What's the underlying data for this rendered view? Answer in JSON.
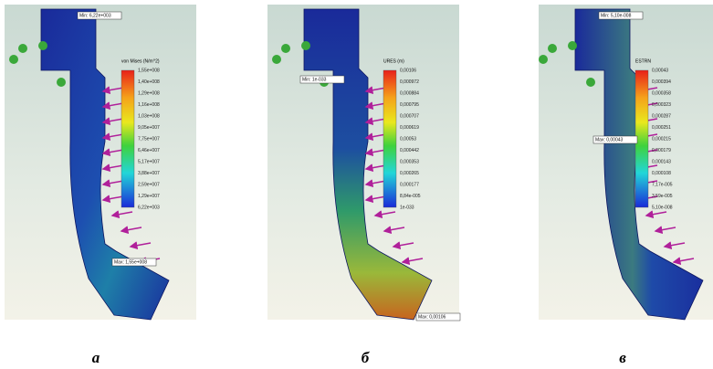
{
  "panels": [
    {
      "legend_title": "von Mises (N/m^2)",
      "legend_labels": [
        "1,55e+008",
        "1,40e+008",
        "1,29e+008",
        "1,16e+008",
        "1,03e+008",
        "9,05e+007",
        "7,75e+007",
        "6,46e+007",
        "5,17e+007",
        "3,88e+007",
        "2,59e+007",
        "1,29e+007",
        "6,22e+003"
      ],
      "min_label": "Min: 6,22e+003",
      "max_label": "Max: 1,55e+008",
      "caption": "а"
    },
    {
      "legend_title": "URES (m)",
      "legend_labels": [
        "0,00106",
        "0,000972",
        "0,000884",
        "0,000795",
        "0,000707",
        "0,000619",
        "0,00053",
        "0,000442",
        "0,000353",
        "0,000265",
        "0,000177",
        "8,84e-005",
        "1e-033"
      ],
      "min_label": "Min: 1e-033",
      "max_label": "Max: 0,00106",
      "caption": "б"
    },
    {
      "legend_title": "ESTRN",
      "legend_labels": [
        "0,00043",
        "0,000394",
        "0,000358",
        "0,000323",
        "0,000287",
        "0,000251",
        "0,000215",
        "0,000179",
        "0,000143",
        "0,000108",
        "7,17e-005",
        "3,59e-005",
        "5,10e-008"
      ],
      "min_label": "Min: 5,10e-008",
      "max_label": "Max: 0,00043",
      "caption": "в"
    }
  ]
}
